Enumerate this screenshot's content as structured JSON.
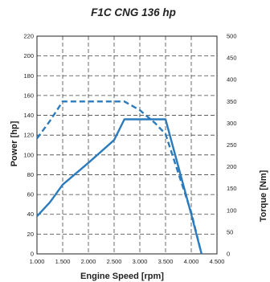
{
  "chart_data": {
    "type": "line",
    "title": "F1C CNG 136 hp",
    "xlabel": "Engine Speed [rpm]",
    "ylabel": "Power [hp]",
    "y2label": "Torque [Nm]",
    "xlim": [
      1000,
      4500
    ],
    "ylim": [
      0,
      220
    ],
    "y2lim": [
      0,
      500
    ],
    "x_ticks": [
      1000,
      1500,
      2000,
      2500,
      3000,
      3500,
      4000,
      4500
    ],
    "x_tick_labels": [
      "1.000",
      "1.500",
      "2.000",
      "2.500",
      "3.000",
      "3.500",
      "4.000",
      "4.500"
    ],
    "y_ticks": [
      0,
      20,
      40,
      60,
      80,
      100,
      120,
      140,
      160,
      180,
      200,
      220
    ],
    "y_tick_labels": [
      "0",
      "20",
      "40",
      "60",
      "80",
      "100",
      "120",
      "140",
      "160",
      "180",
      "200",
      "220"
    ],
    "y2_ticks": [
      0,
      50,
      100,
      150,
      200,
      250,
      300,
      350,
      400,
      450,
      500
    ],
    "y2_tick_labels": [
      "0",
      "50",
      "100",
      "150",
      "200",
      "250",
      "300",
      "350",
      "400",
      "450",
      "500"
    ],
    "grid": true,
    "legend": "none",
    "line_color": "#2b7bbd",
    "series": [
      {
        "axis": "left",
        "style": "solid",
        "x": [
          1000,
          1250,
          1500,
          2000,
          2500,
          2700,
          3000,
          3300,
          3500,
          4000,
          4200
        ],
        "y": [
          38,
          52,
          70,
          92,
          115,
          136,
          136,
          136,
          136,
          40,
          0
        ]
      },
      {
        "axis": "right",
        "style": "dashed",
        "x": [
          1000,
          1250,
          1500,
          2000,
          2500,
          2700,
          3000,
          3300,
          3500,
          4000,
          4200
        ],
        "y": [
          265,
          305,
          350,
          350,
          350,
          350,
          330,
          300,
          275,
          95,
          0
        ]
      }
    ]
  }
}
